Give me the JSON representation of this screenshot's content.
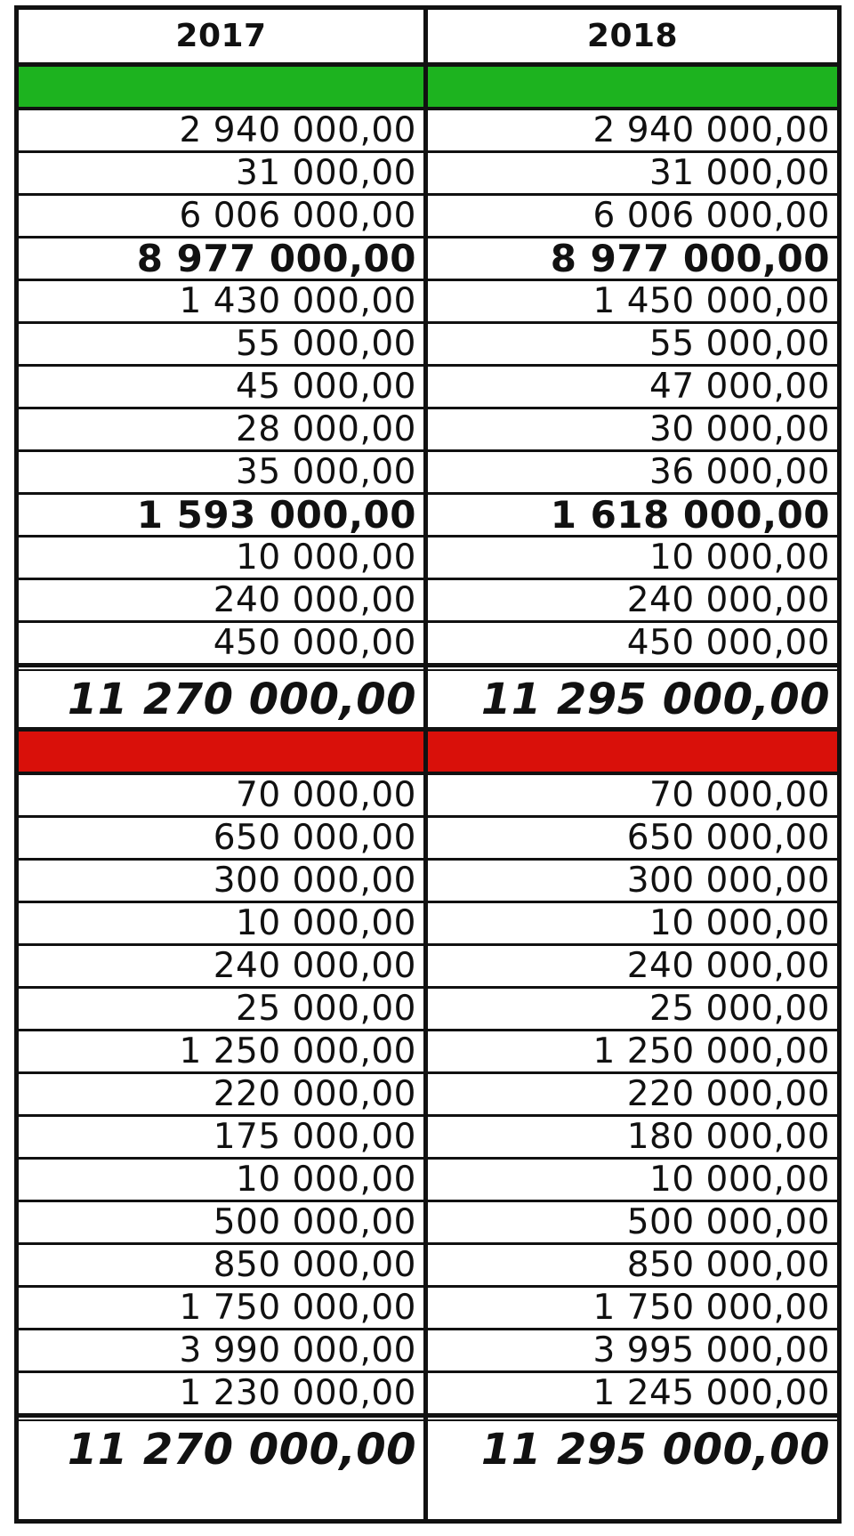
{
  "colors": {
    "green_band": "#1db31f",
    "red_band": "#d9100a",
    "border": "#111111"
  },
  "years": [
    "2017",
    "2018"
  ],
  "columns": [
    {
      "year": "2017",
      "income": [
        "2 940 000,00",
        "31 000,00",
        "6 006 000,00"
      ],
      "income_subtotal_1": "8 977 000,00",
      "income_2": [
        "1 430 000,00",
        "55 000,00",
        "45 000,00",
        "28 000,00",
        "35 000,00"
      ],
      "income_subtotal_2": "1 593 000,00",
      "income_3": [
        "10 000,00",
        "240 000,00",
        "450 000,00"
      ],
      "income_total": "11 270 000,00",
      "expenses": [
        "70 000,00",
        "650 000,00",
        "300 000,00",
        "10 000,00",
        "240 000,00",
        "25 000,00",
        "1 250 000,00",
        "220 000,00",
        "175 000,00",
        "10 000,00",
        "500 000,00",
        "850 000,00",
        "1 750 000,00",
        "3 990 000,00",
        "1 230 000,00"
      ],
      "expenses_total": "11 270 000,00"
    },
    {
      "year": "2018",
      "income": [
        "2 940 000,00",
        "31 000,00",
        "6 006 000,00"
      ],
      "income_subtotal_1": "8 977 000,00",
      "income_2": [
        "1 450 000,00",
        "55 000,00",
        "47 000,00",
        "30 000,00",
        "36 000,00"
      ],
      "income_subtotal_2": "1 618 000,00",
      "income_3": [
        "10 000,00",
        "240 000,00",
        "450 000,00"
      ],
      "income_total": "11 295 000,00",
      "expenses": [
        "70 000,00",
        "650 000,00",
        "300 000,00",
        "10 000,00",
        "240 000,00",
        "25 000,00",
        "1 250 000,00",
        "220 000,00",
        "180 000,00",
        "10 000,00",
        "500 000,00",
        "850 000,00",
        "1 750 000,00",
        "3 995 000,00",
        "1 245 000,00"
      ],
      "expenses_total": "11 295 000,00"
    }
  ]
}
